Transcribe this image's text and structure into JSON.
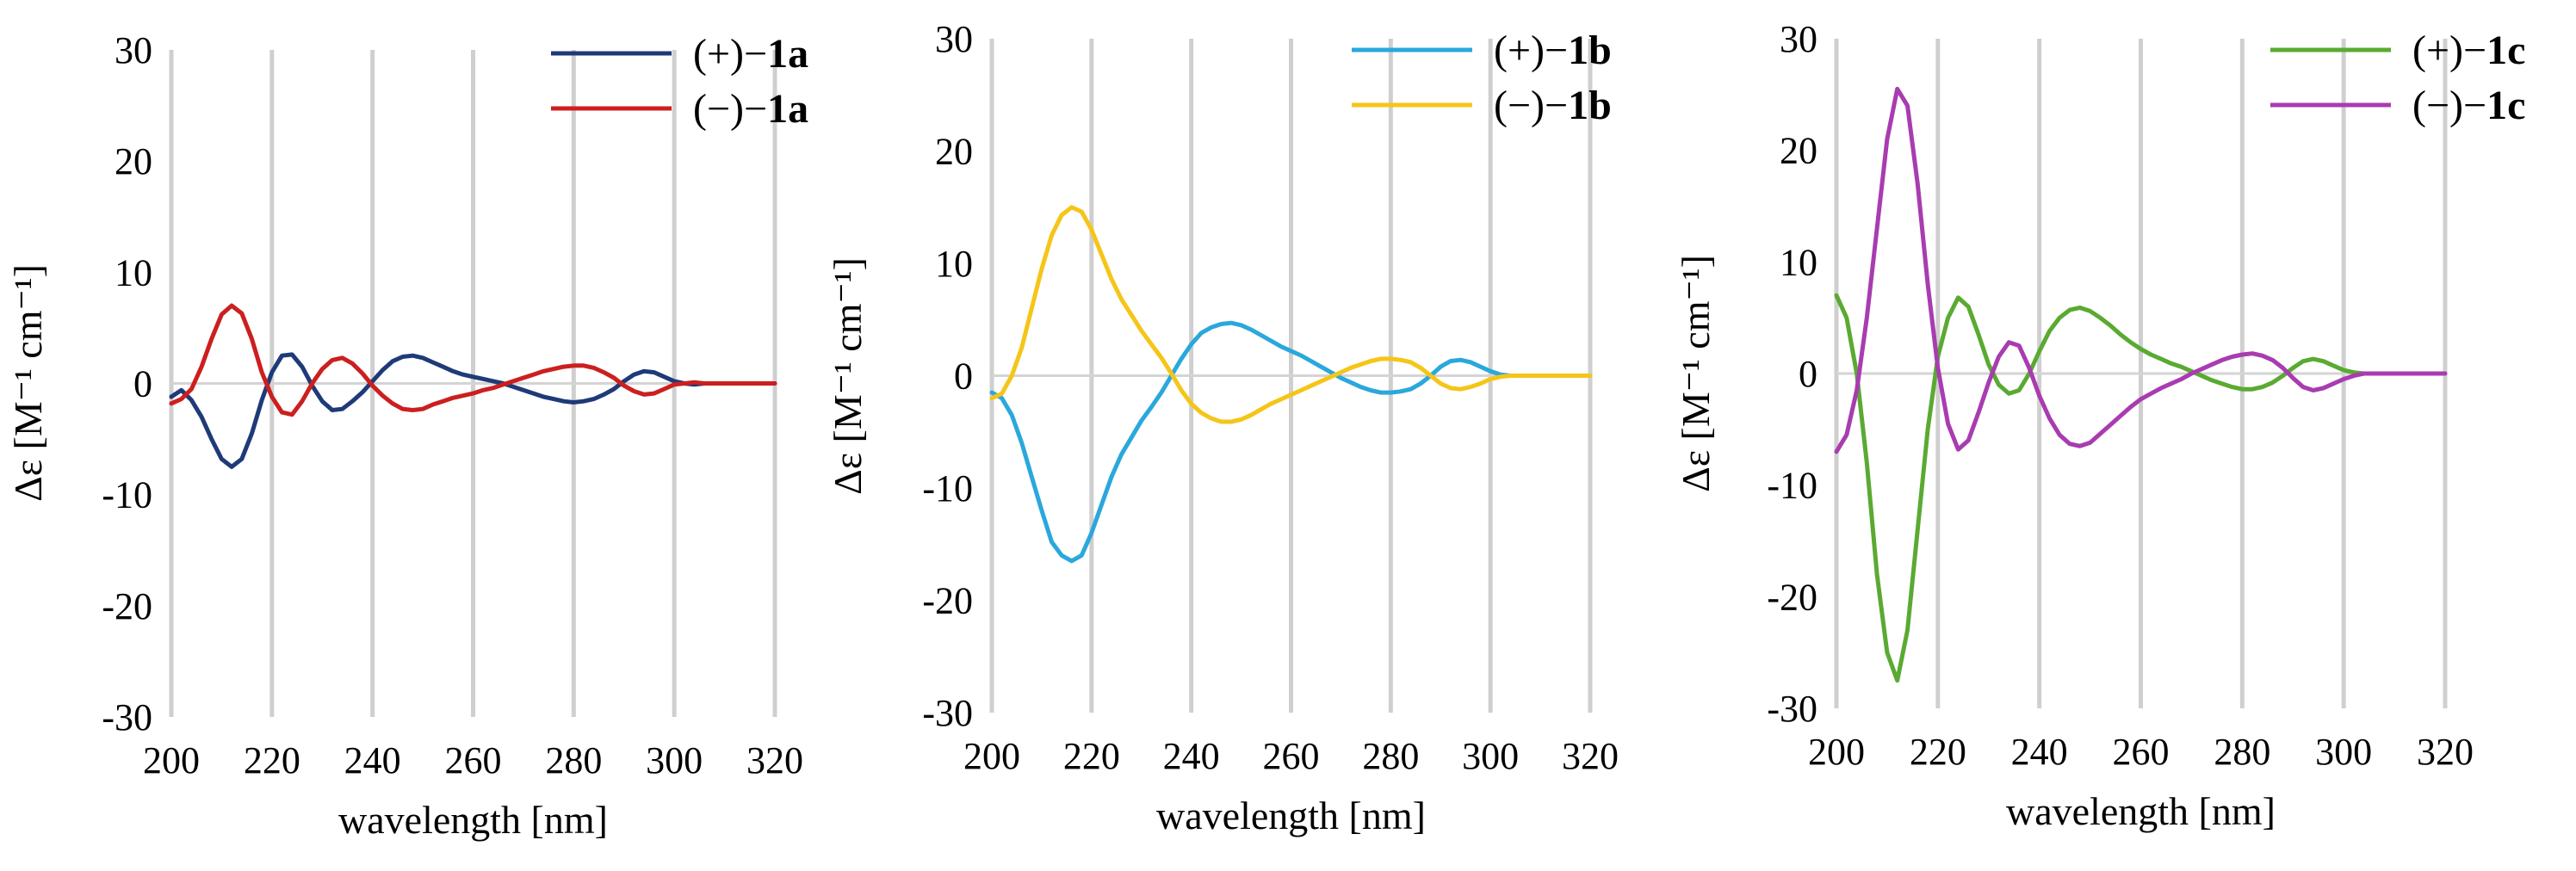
{
  "chart_data": [
    {
      "type": "line",
      "id": "a",
      "xlabel": "wavelength [nm]",
      "ylabel": "Δε [M⁻¹ cm⁻¹]",
      "xlim": [
        200,
        320
      ],
      "ylim": [
        -30,
        30
      ],
      "xticks": [
        "200",
        "220",
        "240",
        "260",
        "280",
        "300",
        "320"
      ],
      "yticks": [
        "30",
        "20",
        "10",
        "0",
        "-10",
        "-20",
        "-30"
      ],
      "series": [
        {
          "name": "(+)−1a",
          "prefix": "(+)−",
          "suffix": "1a",
          "color": "#1f3a78",
          "x": [
            200,
            202,
            204,
            206,
            208,
            210,
            212,
            214,
            216,
            218,
            220,
            222,
            224,
            226,
            228,
            230,
            232,
            234,
            236,
            238,
            240,
            242,
            244,
            246,
            248,
            250,
            252,
            254,
            256,
            258,
            260,
            262,
            264,
            266,
            268,
            270,
            272,
            274,
            276,
            278,
            280,
            282,
            284,
            286,
            288,
            290,
            292,
            294,
            296,
            298,
            300,
            302,
            304,
            306,
            308,
            310,
            315,
            320
          ],
          "y": [
            -1.2,
            -0.6,
            -1.5,
            -3.0,
            -5.0,
            -6.8,
            -7.5,
            -6.8,
            -4.5,
            -1.5,
            1.0,
            2.5,
            2.6,
            1.5,
            -0.2,
            -1.6,
            -2.4,
            -2.3,
            -1.6,
            -0.8,
            0.2,
            1.2,
            2.0,
            2.4,
            2.5,
            2.3,
            1.9,
            1.5,
            1.1,
            0.8,
            0.6,
            0.4,
            0.2,
            0.0,
            -0.3,
            -0.6,
            -0.9,
            -1.2,
            -1.4,
            -1.6,
            -1.7,
            -1.6,
            -1.4,
            -1.0,
            -0.5,
            0.2,
            0.8,
            1.1,
            1.0,
            0.6,
            0.2,
            0.0,
            -0.1,
            0.0,
            0.0,
            0.0,
            0.0,
            0.0
          ]
        },
        {
          "name": "(−)−1a",
          "prefix": "(−)−",
          "suffix": "1a",
          "color": "#cc1f1f",
          "x": [
            200,
            202,
            204,
            206,
            208,
            210,
            212,
            214,
            216,
            218,
            220,
            222,
            224,
            226,
            228,
            230,
            232,
            234,
            236,
            238,
            240,
            242,
            244,
            246,
            248,
            250,
            252,
            254,
            256,
            258,
            260,
            262,
            264,
            266,
            268,
            270,
            272,
            274,
            276,
            278,
            280,
            282,
            284,
            286,
            288,
            290,
            292,
            294,
            296,
            298,
            300,
            302,
            304,
            306,
            308,
            310,
            315,
            320
          ],
          "y": [
            -1.8,
            -1.4,
            -0.5,
            1.5,
            4.0,
            6.2,
            7.0,
            6.3,
            4.0,
            1.0,
            -1.2,
            -2.6,
            -2.8,
            -1.6,
            0.0,
            1.3,
            2.1,
            2.3,
            1.8,
            0.9,
            -0.2,
            -1.1,
            -1.8,
            -2.3,
            -2.4,
            -2.3,
            -1.9,
            -1.6,
            -1.3,
            -1.1,
            -0.9,
            -0.6,
            -0.4,
            -0.1,
            0.2,
            0.5,
            0.8,
            1.1,
            1.3,
            1.5,
            1.6,
            1.6,
            1.4,
            1.0,
            0.5,
            -0.2,
            -0.7,
            -1.0,
            -0.9,
            -0.5,
            -0.1,
            0.0,
            0.1,
            0.0,
            0.0,
            0.0,
            0.0,
            0.0
          ]
        }
      ]
    },
    {
      "type": "line",
      "id": "b",
      "xlabel": "wavelength [nm]",
      "ylabel": "Δε [M⁻¹ cm⁻¹]",
      "xlim": [
        200,
        320
      ],
      "ylim": [
        -30,
        30
      ],
      "xticks": [
        "200",
        "220",
        "240",
        "260",
        "280",
        "300",
        "320"
      ],
      "yticks": [
        "30",
        "20",
        "10",
        "0",
        "-10",
        "-20",
        "-30"
      ],
      "series": [
        {
          "name": "(+)−1b",
          "prefix": "(+)−",
          "suffix": "1b",
          "color": "#2aa8dc",
          "x": [
            200,
            202,
            204,
            206,
            208,
            210,
            212,
            214,
            216,
            218,
            220,
            222,
            224,
            226,
            228,
            230,
            232,
            234,
            236,
            238,
            240,
            242,
            244,
            246,
            248,
            250,
            252,
            254,
            256,
            258,
            260,
            262,
            264,
            266,
            268,
            270,
            272,
            274,
            276,
            278,
            280,
            282,
            284,
            286,
            288,
            290,
            292,
            294,
            296,
            298,
            300,
            302,
            304,
            306,
            308,
            310,
            315,
            320
          ],
          "y": [
            -1.5,
            -2.0,
            -3.5,
            -6.0,
            -9.0,
            -12.0,
            -14.8,
            -16.0,
            -16.5,
            -16.0,
            -14.0,
            -11.5,
            -9.0,
            -7.0,
            -5.5,
            -4.0,
            -2.8,
            -1.5,
            0.0,
            1.5,
            2.8,
            3.8,
            4.3,
            4.6,
            4.7,
            4.5,
            4.1,
            3.6,
            3.1,
            2.6,
            2.2,
            1.8,
            1.3,
            0.8,
            0.3,
            -0.2,
            -0.6,
            -1.0,
            -1.3,
            -1.5,
            -1.5,
            -1.4,
            -1.2,
            -0.7,
            0.0,
            0.8,
            1.3,
            1.4,
            1.2,
            0.8,
            0.4,
            0.1,
            0.0,
            0.0,
            0.0,
            0.0,
            0.0,
            0.0
          ]
        },
        {
          "name": "(−)−1b",
          "prefix": "(−)−",
          "suffix": "1b",
          "color": "#f5c518",
          "x": [
            200,
            202,
            204,
            206,
            208,
            210,
            212,
            214,
            216,
            218,
            220,
            222,
            224,
            226,
            228,
            230,
            232,
            234,
            236,
            238,
            240,
            242,
            244,
            246,
            248,
            250,
            252,
            254,
            256,
            258,
            260,
            262,
            264,
            266,
            268,
            270,
            272,
            274,
            276,
            278,
            280,
            282,
            284,
            286,
            288,
            290,
            292,
            294,
            296,
            298,
            300,
            302,
            304,
            306,
            308,
            310,
            315,
            320
          ],
          "y": [
            -2.0,
            -1.6,
            0.0,
            2.5,
            6.0,
            9.5,
            12.5,
            14.3,
            15.0,
            14.6,
            13.0,
            10.8,
            8.6,
            6.8,
            5.4,
            4.0,
            2.8,
            1.6,
            0.2,
            -1.3,
            -2.5,
            -3.3,
            -3.8,
            -4.1,
            -4.1,
            -3.9,
            -3.5,
            -3.0,
            -2.5,
            -2.1,
            -1.7,
            -1.3,
            -0.9,
            -0.5,
            -0.1,
            0.3,
            0.7,
            1.0,
            1.3,
            1.5,
            1.5,
            1.4,
            1.2,
            0.7,
            0.0,
            -0.7,
            -1.1,
            -1.2,
            -1.0,
            -0.7,
            -0.3,
            -0.1,
            0.0,
            0.0,
            0.0,
            0.0,
            0.0,
            0.0
          ]
        }
      ]
    },
    {
      "type": "line",
      "id": "c",
      "xlabel": "wavelength [nm]",
      "ylabel": "Δε [M⁻¹ cm⁻¹]",
      "xlim": [
        200,
        320
      ],
      "ylim": [
        -30,
        30
      ],
      "xticks": [
        "200",
        "220",
        "240",
        "260",
        "280",
        "300",
        "320"
      ],
      "yticks": [
        "30",
        "20",
        "10",
        "0",
        "-10",
        "-20",
        "-30"
      ],
      "series": [
        {
          "name": "(+)−1c",
          "prefix": "(+)−",
          "suffix": "1c",
          "color": "#5aaa32",
          "x": [
            200,
            202,
            204,
            206,
            208,
            210,
            212,
            214,
            216,
            218,
            220,
            222,
            224,
            226,
            228,
            230,
            232,
            234,
            236,
            238,
            240,
            242,
            244,
            246,
            248,
            250,
            252,
            254,
            256,
            258,
            260,
            262,
            264,
            266,
            268,
            270,
            272,
            274,
            276,
            278,
            280,
            282,
            284,
            286,
            288,
            290,
            292,
            294,
            296,
            298,
            300,
            302,
            304,
            306,
            308,
            310,
            315,
            320
          ],
          "y": [
            7.0,
            5.0,
            0.0,
            -8.0,
            -18.0,
            -25.0,
            -27.5,
            -23.0,
            -14.0,
            -5.0,
            1.5,
            5.0,
            6.8,
            6.0,
            3.5,
            0.8,
            -1.0,
            -1.8,
            -1.5,
            0.0,
            2.0,
            3.8,
            5.0,
            5.7,
            5.9,
            5.6,
            5.0,
            4.3,
            3.5,
            2.8,
            2.2,
            1.7,
            1.3,
            0.9,
            0.6,
            0.2,
            -0.2,
            -0.6,
            -0.9,
            -1.2,
            -1.4,
            -1.4,
            -1.2,
            -0.8,
            -0.2,
            0.5,
            1.1,
            1.3,
            1.1,
            0.7,
            0.3,
            0.1,
            0.0,
            0.0,
            0.0,
            0.0,
            0.0,
            0.0
          ]
        },
        {
          "name": "(−)−1c",
          "prefix": "(−)−",
          "suffix": "1c",
          "color": "#a83cb0",
          "x": [
            200,
            202,
            204,
            206,
            208,
            210,
            212,
            214,
            216,
            218,
            220,
            222,
            224,
            226,
            228,
            230,
            232,
            234,
            236,
            238,
            240,
            242,
            244,
            246,
            248,
            250,
            252,
            254,
            256,
            258,
            260,
            262,
            264,
            266,
            268,
            270,
            272,
            274,
            276,
            278,
            280,
            282,
            284,
            286,
            288,
            290,
            292,
            294,
            296,
            298,
            300,
            302,
            304,
            306,
            308,
            310,
            315,
            320
          ],
          "y": [
            -7.0,
            -5.5,
            -1.5,
            5.0,
            13.0,
            21.0,
            25.5,
            24.0,
            17.0,
            8.0,
            0.5,
            -4.5,
            -6.8,
            -6.0,
            -3.5,
            -0.8,
            1.5,
            2.8,
            2.5,
            0.5,
            -2.0,
            -4.0,
            -5.5,
            -6.3,
            -6.5,
            -6.2,
            -5.4,
            -4.6,
            -3.8,
            -3.0,
            -2.3,
            -1.8,
            -1.3,
            -0.9,
            -0.5,
            0.0,
            0.4,
            0.8,
            1.2,
            1.5,
            1.7,
            1.8,
            1.6,
            1.2,
            0.5,
            -0.4,
            -1.2,
            -1.5,
            -1.3,
            -0.9,
            -0.5,
            -0.2,
            0.0,
            0.0,
            0.0,
            0.0,
            0.0,
            0.0
          ]
        }
      ]
    }
  ]
}
